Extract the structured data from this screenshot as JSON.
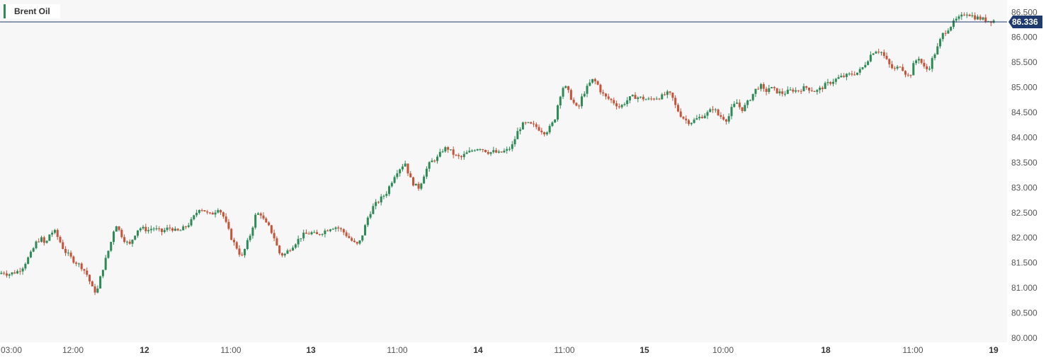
{
  "legend": {
    "label": "Brent Oil",
    "color": "#2e8b57"
  },
  "current_price": {
    "label": "86.336",
    "value": 86.336,
    "color": "#1f3a6e"
  },
  "colors": {
    "up": "#2e8b57",
    "down": "#c8533a",
    "plot_bg": "#f7f7f7",
    "axis_text": "#555555"
  },
  "chart_data": {
    "type": "candlestick",
    "title": "",
    "xlabel": "",
    "ylabel": "",
    "ylim": [
      80.0,
      86.6
    ],
    "y_ticks": [
      "80.000",
      "80.500",
      "81.000",
      "81.500",
      "82.000",
      "82.500",
      "83.000",
      "83.500",
      "84.000",
      "84.500",
      "85.000",
      "85.500",
      "86.000",
      "86.500"
    ],
    "x_ticks": [
      {
        "label": "03:00",
        "bold": false
      },
      {
        "label": "12:00",
        "bold": false
      },
      {
        "label": "12",
        "bold": true
      },
      {
        "label": "11:00",
        "bold": false
      },
      {
        "label": "13",
        "bold": true
      },
      {
        "label": "11:00",
        "bold": false
      },
      {
        "label": "14",
        "bold": true
      },
      {
        "label": "11:00",
        "bold": false
      },
      {
        "label": "15",
        "bold": true
      },
      {
        "label": "10:00",
        "bold": false
      },
      {
        "label": "18",
        "bold": true
      },
      {
        "label": "11:00",
        "bold": false
      },
      {
        "label": "19",
        "bold": true
      }
    ],
    "close_path": [
      81.28,
      81.32,
      81.27,
      81.3,
      81.33,
      81.4,
      81.55,
      81.7,
      81.9,
      82.0,
      81.85,
      82.1,
      82.12,
      81.95,
      81.75,
      81.65,
      81.55,
      81.48,
      81.4,
      81.25,
      81.0,
      80.9,
      81.3,
      81.6,
      81.9,
      82.3,
      82.1,
      81.95,
      81.85,
      82.05,
      82.2,
      82.18,
      82.15,
      82.2,
      82.15,
      82.12,
      82.18,
      82.2,
      82.12,
      82.15,
      82.22,
      82.3,
      82.45,
      82.6,
      82.55,
      82.45,
      82.5,
      82.6,
      82.45,
      82.2,
      81.95,
      81.8,
      81.6,
      81.85,
      82.1,
      82.45,
      82.5,
      82.3,
      82.2,
      82.0,
      81.7,
      81.65,
      81.75,
      81.85,
      81.95,
      82.05,
      82.08,
      82.1,
      82.05,
      82.1,
      82.15,
      82.2,
      82.22,
      82.18,
      82.1,
      82.0,
      81.9,
      81.85,
      82.1,
      82.4,
      82.6,
      82.7,
      82.8,
      82.9,
      83.1,
      83.3,
      83.4,
      83.5,
      83.2,
      83.05,
      83.0,
      83.25,
      83.45,
      83.55,
      83.6,
      83.75,
      83.8,
      83.7,
      83.62,
      83.6,
      83.68,
      83.72,
      83.78,
      83.8,
      83.75,
      83.7,
      83.72,
      83.68,
      83.72,
      83.75,
      83.85,
      84.1,
      84.25,
      84.28,
      84.25,
      84.22,
      84.15,
      84.1,
      84.2,
      84.35,
      84.8,
      85.05,
      84.9,
      84.7,
      84.55,
      84.85,
      85.0,
      85.15,
      85.1,
      84.9,
      84.8,
      84.75,
      84.68,
      84.6,
      84.7,
      84.78,
      84.82,
      84.8,
      84.78,
      84.75,
      84.78,
      84.8,
      84.82,
      84.88,
      84.85,
      84.6,
      84.45,
      84.35,
      84.3,
      84.35,
      84.4,
      84.45,
      84.5,
      84.6,
      84.45,
      84.4,
      84.35,
      84.6,
      84.7,
      84.55,
      84.65,
      84.8,
      84.95,
      85.05,
      84.9,
      85.0,
      84.95,
      84.9,
      84.88,
      84.92,
      84.95,
      84.93,
      84.98,
      85.0,
      84.95,
      84.92,
      84.98,
      85.05,
      85.1,
      85.15,
      85.2,
      85.22,
      85.25,
      85.28,
      85.3,
      85.4,
      85.55,
      85.7,
      85.75,
      85.7,
      85.55,
      85.4,
      85.35,
      85.45,
      85.3,
      85.2,
      85.5,
      85.6,
      85.4,
      85.35,
      85.6,
      85.8,
      86.05,
      86.15,
      86.25,
      86.35,
      86.4,
      86.5,
      86.45,
      86.4,
      86.38,
      86.35,
      86.33,
      86.336
    ]
  }
}
